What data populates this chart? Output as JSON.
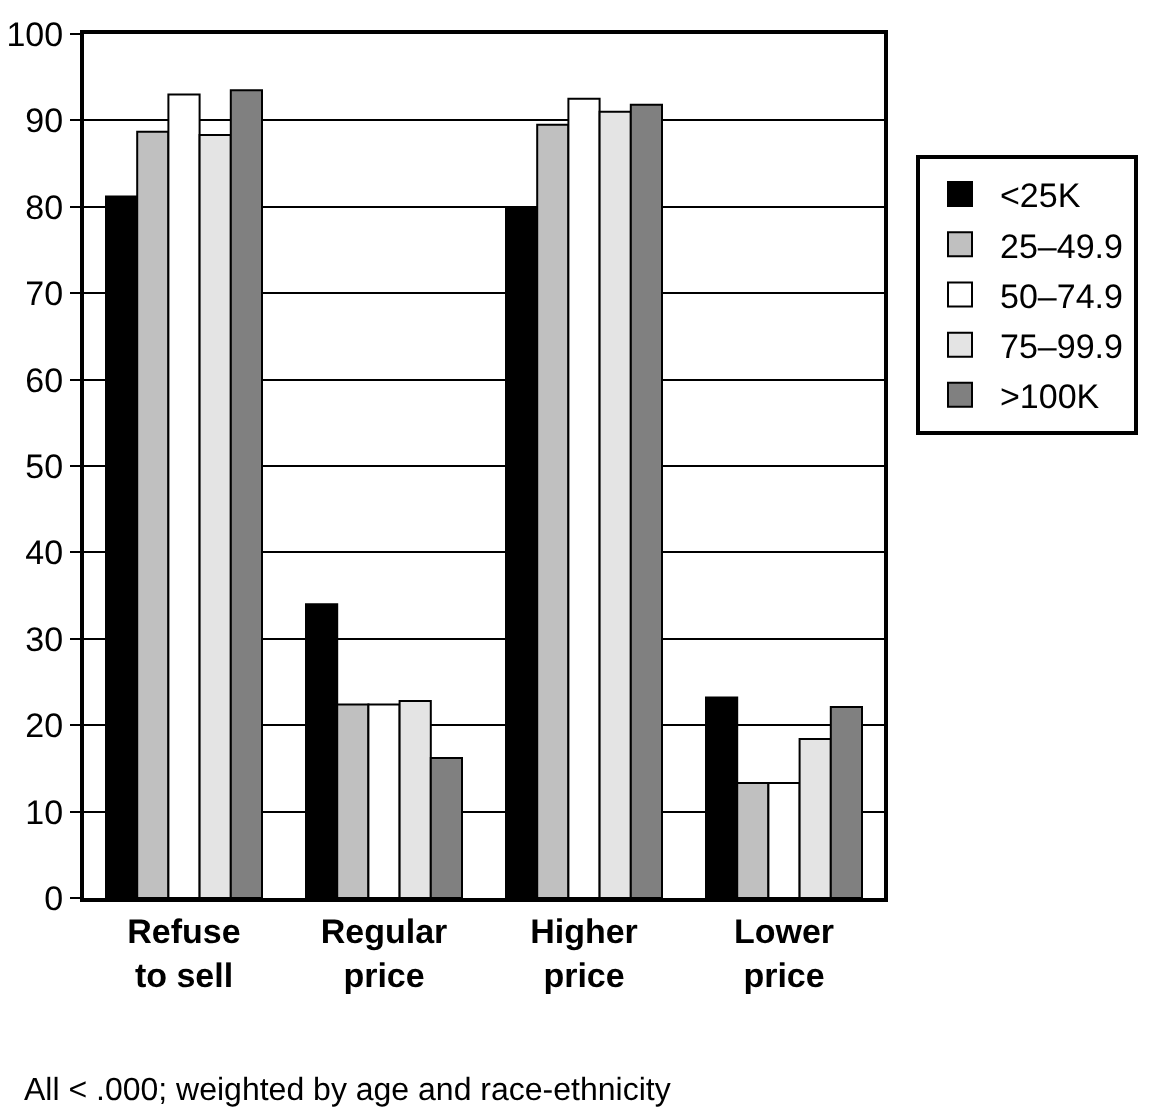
{
  "chart_data": {
    "type": "bar",
    "categories": [
      "Refuse\nto sell",
      "Regular\nprice",
      "Higher\nprice",
      "Lower\nprice"
    ],
    "series": [
      {
        "name": "<25K",
        "color": "#000000",
        "values": [
          81.2,
          34,
          79.8,
          23.2
        ]
      },
      {
        "name": "25–49.9",
        "color": "#c0c0c0",
        "values": [
          88.7,
          22.4,
          89.5,
          13.3
        ]
      },
      {
        "name": "50–74.9",
        "color": "#ffffff",
        "values": [
          93,
          22.4,
          92.5,
          13.3
        ]
      },
      {
        "name": "75–99.9",
        "color": "#e4e4e4",
        "values": [
          88.3,
          22.8,
          91,
          18.4
        ]
      },
      {
        "name": ">100K",
        "color": "#808080",
        "values": [
          93.5,
          16.2,
          91.8,
          22.1
        ]
      }
    ],
    "ylim": [
      0,
      100
    ],
    "yticks": [
      0,
      10,
      20,
      30,
      40,
      50,
      60,
      70,
      80,
      90,
      100
    ],
    "grid": "y",
    "legend": "right",
    "annotations": [
      "All < .000; weighted by age and race-ethnicity"
    ]
  }
}
